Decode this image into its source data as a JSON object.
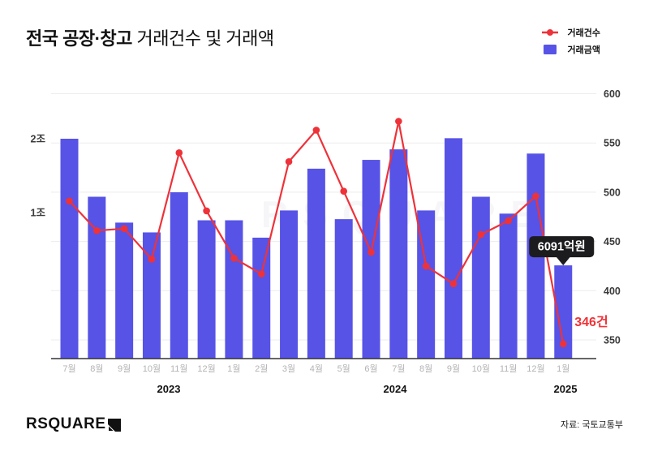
{
  "title": {
    "bold": "전국 공장·창고",
    "regular": " 거래건수 및 거래액"
  },
  "legend": [
    {
      "label": "거래건수",
      "marker": "line-dot",
      "color": "#ee3239"
    },
    {
      "label": "거래금액",
      "marker": "square",
      "color": "#5753e6"
    }
  ],
  "colors": {
    "bar": "#5753e6",
    "line": "#ee3239",
    "tooltip_bg": "#1c1c1e",
    "tooltip_text": "#ffffff",
    "annotation_red": "#f03237",
    "grid": "#ececec",
    "axis_line": "#333333",
    "month_label": "#b3b3b3",
    "year_label": "#111111",
    "tick_label": "#3a3a3a"
  },
  "left_axis": {
    "ticks": [
      {
        "label": "2조",
        "value": 20000
      },
      {
        "label": "1조",
        "value": 10000
      }
    ],
    "unit": "조원"
  },
  "right_axis": {
    "ticks": [
      600,
      550,
      500,
      450,
      400,
      350
    ],
    "min": 350,
    "max": 600,
    "unit": "건"
  },
  "x_axis": {
    "months": [
      "7월",
      "8월",
      "9월",
      "10월",
      "11월",
      "12월",
      "1월",
      "2월",
      "3월",
      "4월",
      "5월",
      "6월",
      "7월",
      "8월",
      "9월",
      "10월",
      "11월",
      "12월",
      "1월"
    ],
    "years": [
      "2023",
      "2024",
      "2025"
    ]
  },
  "chart_data": {
    "type": "bar+line combo",
    "title": "전국 공장·창고 거래건수 및 거래액",
    "categories": [
      "2023-07",
      "2023-08",
      "2023-09",
      "2023-10",
      "2023-11",
      "2023-12",
      "2024-01",
      "2024-02",
      "2024-03",
      "2024-04",
      "2024-05",
      "2024-06",
      "2024-07",
      "2024-08",
      "2024-09",
      "2024-10",
      "2024-11",
      "2024-12",
      "2025-01"
    ],
    "series": [
      {
        "name": "거래건수",
        "type": "line",
        "axis": "right",
        "unit": "건",
        "values": [
          491,
          461,
          463,
          432,
          540,
          481,
          433,
          417,
          531,
          563,
          501,
          439,
          572,
          425,
          407,
          457,
          471,
          496,
          346
        ]
      },
      {
        "name": "거래금액",
        "type": "bar",
        "axis": "left",
        "unit": "억원",
        "values": [
          20000,
          11600,
          9100,
          8300,
          12100,
          9300,
          9300,
          7900,
          10200,
          15100,
          9400,
          16400,
          18100,
          10200,
          20100,
          11600,
          9900,
          17400,
          6091
        ]
      }
    ],
    "right_axis_range": [
      350,
      600
    ],
    "grid": "horizontal",
    "legend_position": "top-right"
  },
  "annotations": {
    "tooltip_label": "6091억원",
    "line_end_label": "346건"
  },
  "watermark": "RSQUARE",
  "footer": {
    "logo": "RSQUARE",
    "source": "자료: 국토교통부"
  }
}
